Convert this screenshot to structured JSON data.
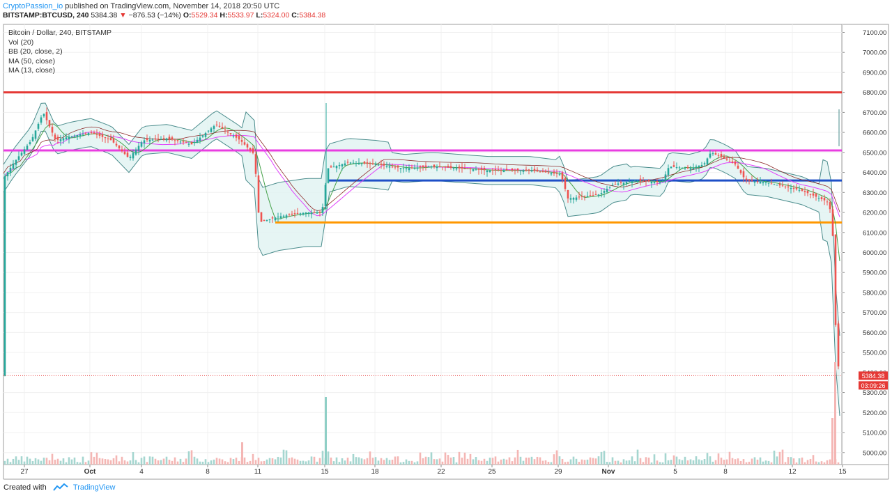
{
  "header": {
    "author": "CryptoPassion_io",
    "published": " published on TradingView.com, November 14, 2018 20:50 UTC"
  },
  "info": {
    "symbol": "BITSTAMP:BTCUSD, 240",
    "last": "5384.38",
    "change": "−876.53 (−14%)",
    "o_label": "O:",
    "o": "5529.34",
    "h_label": "H:",
    "h": "5533.97",
    "l_label": "L:",
    "l": "5324.00",
    "c_label": "C:",
    "c": "5384.38"
  },
  "legend": {
    "title": "Bitcoin / Dollar, 240, BITSTAMP",
    "vol": "Vol (20)",
    "bb": "BB (20, close, 2)",
    "ma50": "MA (50, close)",
    "ma13": "MA (13, close)"
  },
  "footer": {
    "created": "Created with",
    "brand": "TradingView"
  },
  "price_tag": {
    "price": "5384.38",
    "countdown": "03:09:26"
  },
  "chart_data": {
    "type": "line",
    "ylim": [
      4940,
      7140
    ],
    "y_ticks": [
      "7100.00",
      "7000.00",
      "6900.00",
      "6800.00",
      "6700.00",
      "6600.00",
      "6500.00",
      "6400.00",
      "6300.00",
      "6200.00",
      "6100.00",
      "6000.00",
      "5900.00",
      "5800.00",
      "5700.00",
      "5600.00",
      "5500.00",
      "5400.00",
      "5300.00",
      "5200.00",
      "5100.00",
      "5000.00"
    ],
    "x_ticks": [
      "27",
      "Oct",
      "4",
      "8",
      "11",
      "15",
      "18",
      "22",
      "25",
      "29",
      "Nov",
      "5",
      "8",
      "12",
      "15"
    ],
    "horizontal_levels": [
      {
        "price": 6800,
        "color": "#e53935"
      },
      {
        "price": 6510,
        "color": "#e83ee0"
      },
      {
        "price": 6360,
        "color": "#1e4fc7"
      },
      {
        "price": 6150,
        "color": "#ff9800"
      }
    ],
    "series": [
      {
        "name": "Close",
        "color": "#26a69a",
        "x": [
          "27",
          "Oct",
          "4",
          "8",
          "11",
          "15",
          "18",
          "22",
          "25",
          "29",
          "Nov",
          "5",
          "8",
          "12",
          "15"
        ],
        "values": [
          6420,
          6600,
          6520,
          6560,
          6510,
          6290,
          6440,
          6400,
          6410,
          6370,
          6320,
          6420,
          6480,
          6340,
          5384
        ]
      }
    ],
    "colors": {
      "up": "#26a69a",
      "down": "#ef5350",
      "bb_fill": "#e0f2f1",
      "bb_line": "#4a8c8c",
      "ma50": "#e040fb",
      "ma13": "#43a047"
    }
  }
}
